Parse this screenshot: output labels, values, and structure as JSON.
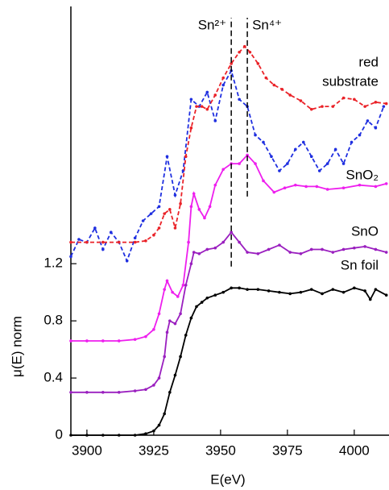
{
  "chart_data": {
    "type": "line",
    "xlabel": "E(eV)",
    "ylabel": "μ(E) norm",
    "xlim": [
      3894,
      4013
    ],
    "ylim": [
      0,
      3
    ],
    "xticks": [
      3900,
      3925,
      3950,
      3975,
      4000
    ],
    "yticks": [
      0,
      0.4,
      0.8,
      1.2
    ],
    "grid": false,
    "vlines": [
      {
        "x": 3954,
        "label": "Sn²⁺",
        "y": [
          1.18,
          2.92
        ]
      },
      {
        "x": 3960,
        "label": "Sn⁴⁺",
        "y": [
          1.67,
          2.92
        ]
      }
    ],
    "series": [
      {
        "name": "Sn foil",
        "color": "#000000",
        "dashed": false,
        "x": [
          3894,
          3900,
          3906,
          3912,
          3918,
          3922,
          3925,
          3927,
          3929,
          3931,
          3933,
          3935,
          3937,
          3939,
          3941,
          3943,
          3945,
          3948,
          3951,
          3954,
          3957,
          3960,
          3964,
          3968,
          3972,
          3976,
          3980,
          3984,
          3988,
          3992,
          3996,
          4000,
          4004,
          4006,
          4008,
          4012
        ],
        "values": [
          0,
          0,
          0,
          0,
          0,
          0.01,
          0.03,
          0.07,
          0.15,
          0.3,
          0.42,
          0.55,
          0.7,
          0.82,
          0.9,
          0.93,
          0.96,
          0.98,
          1.0,
          1.03,
          1.03,
          1.02,
          1.02,
          1.01,
          1.0,
          0.99,
          1.0,
          1.02,
          0.99,
          1.02,
          1.0,
          1.03,
          1.01,
          0.95,
          1.02,
          0.98
        ]
      },
      {
        "name": "SnO",
        "color": "#9a1fbf",
        "dashed": false,
        "x": [
          3894,
          3900,
          3906,
          3912,
          3918,
          3922,
          3925,
          3927,
          3929,
          3930,
          3931,
          3933,
          3935,
          3937,
          3939,
          3940,
          3942,
          3945,
          3948,
          3951,
          3954,
          3957,
          3960,
          3964,
          3968,
          3972,
          3976,
          3980,
          3984,
          3988,
          3992,
          3996,
          4000,
          4004,
          4008,
          4012
        ],
        "values": [
          0.3,
          0.3,
          0.3,
          0.3,
          0.31,
          0.32,
          0.35,
          0.4,
          0.55,
          0.72,
          0.8,
          0.78,
          0.85,
          1.05,
          1.2,
          1.28,
          1.27,
          1.3,
          1.31,
          1.35,
          1.42,
          1.35,
          1.28,
          1.27,
          1.3,
          1.33,
          1.28,
          1.27,
          1.3,
          1.3,
          1.28,
          1.3,
          1.31,
          1.32,
          1.3,
          1.28
        ]
      },
      {
        "name": "SnO₂",
        "color": "#ee1fee",
        "dashed": false,
        "x": [
          3894,
          3900,
          3906,
          3912,
          3918,
          3922,
          3925,
          3927,
          3929,
          3930,
          3932,
          3934,
          3936,
          3938,
          3939,
          3940,
          3942,
          3944,
          3946,
          3948,
          3951,
          3954,
          3957,
          3960,
          3963,
          3966,
          3970,
          3974,
          3978,
          3982,
          3986,
          3990,
          3996,
          4002,
          4008,
          4012
        ],
        "values": [
          0.66,
          0.66,
          0.66,
          0.66,
          0.67,
          0.69,
          0.74,
          0.85,
          1.02,
          1.08,
          1.0,
          0.97,
          1.05,
          1.35,
          1.6,
          1.69,
          1.58,
          1.52,
          1.6,
          1.75,
          1.86,
          1.9,
          1.9,
          1.96,
          1.9,
          1.78,
          1.7,
          1.73,
          1.75,
          1.74,
          1.74,
          1.72,
          1.73,
          1.75,
          1.74,
          1.76
        ]
      },
      {
        "name": "substrate",
        "color": "#1f2fe0",
        "dashed": true,
        "x": [
          3894,
          3897,
          3900,
          3903,
          3906,
          3909,
          3912,
          3915,
          3918,
          3921,
          3924,
          3927,
          3930,
          3933,
          3936,
          3939,
          3942,
          3945,
          3948,
          3951,
          3954,
          3957,
          3960,
          3963,
          3966,
          3969,
          3972,
          3975,
          3978,
          3981,
          3984,
          3987,
          3990,
          3993,
          3996,
          3999,
          4002,
          4005,
          4008,
          4011
        ],
        "values": [
          1.25,
          1.37,
          1.35,
          1.45,
          1.3,
          1.42,
          1.35,
          1.22,
          1.38,
          1.5,
          1.55,
          1.6,
          1.95,
          1.68,
          1.85,
          2.35,
          2.3,
          2.4,
          2.2,
          2.45,
          2.55,
          2.35,
          2.3,
          2.1,
          2.05,
          1.95,
          1.85,
          1.9,
          2.0,
          2.05,
          1.95,
          1.85,
          1.9,
          2.0,
          1.9,
          2.05,
          2.1,
          2.2,
          2.15,
          2.3
        ]
      },
      {
        "name": "red",
        "color": "#ea2228",
        "dashed": true,
        "x": [
          3894,
          3900,
          3906,
          3912,
          3918,
          3922,
          3925,
          3927,
          3929,
          3931,
          3933,
          3935,
          3937,
          3939,
          3941,
          3943,
          3945,
          3948,
          3951,
          3954,
          3957,
          3959,
          3961,
          3964,
          3967,
          3970,
          3973,
          3976,
          3980,
          3984,
          3988,
          3992,
          3996,
          4000,
          4004,
          4008,
          4012
        ],
        "values": [
          1.35,
          1.35,
          1.35,
          1.35,
          1.35,
          1.36,
          1.4,
          1.45,
          1.55,
          1.58,
          1.45,
          1.62,
          1.95,
          2.15,
          2.3,
          2.3,
          2.28,
          2.38,
          2.5,
          2.6,
          2.68,
          2.72,
          2.68,
          2.6,
          2.5,
          2.45,
          2.42,
          2.38,
          2.34,
          2.28,
          2.3,
          2.3,
          2.36,
          2.35,
          2.3,
          2.33,
          2.32
        ]
      }
    ]
  }
}
